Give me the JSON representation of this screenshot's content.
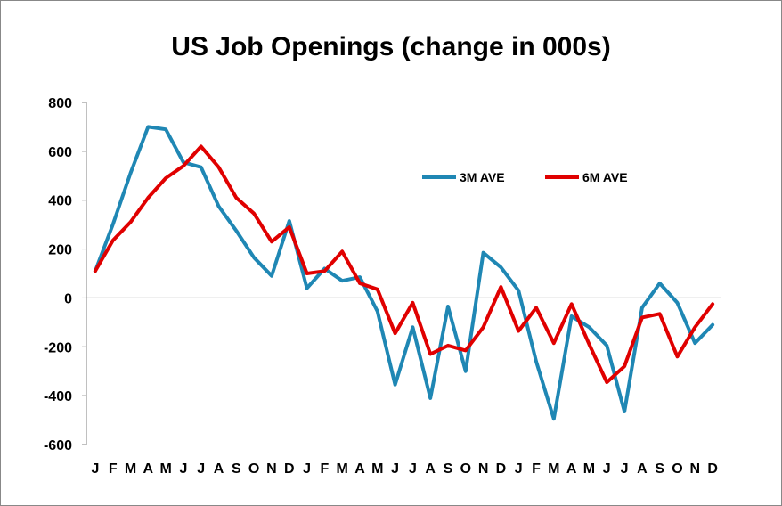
{
  "chart_data": {
    "type": "line",
    "title": "US Job Openings (change in 000s)",
    "xlabel": "",
    "ylabel": "",
    "ylim": [
      -600,
      800
    ],
    "yticks": [
      800,
      600,
      400,
      200,
      0,
      -200,
      -400,
      -600
    ],
    "ytick_labels": [
      "800",
      "600",
      "400",
      "200",
      "0",
      "-200",
      "-400",
      "-600"
    ],
    "categories": [
      "J",
      "F",
      "M",
      "A",
      "M",
      "J",
      "J",
      "A",
      "S",
      "O",
      "N",
      "D",
      "J",
      "F",
      "M",
      "A",
      "M",
      "J",
      "J",
      "A",
      "S",
      "O",
      "N",
      "D",
      "J",
      "F",
      "M",
      "A",
      "M",
      "J",
      "J",
      "A",
      "S",
      "O",
      "N",
      "D"
    ],
    "grid": false,
    "legend_position": "upper-right",
    "series": [
      {
        "name": "3M AVE",
        "color": "#1f87b4",
        "values": [
          110,
          300,
          510,
          700,
          690,
          555,
          535,
          375,
          275,
          165,
          90,
          315,
          40,
          120,
          70,
          85,
          -55,
          -355,
          -120,
          -410,
          -35,
          -300,
          185,
          125,
          30,
          -260,
          -495,
          -75,
          -120,
          -195,
          -465,
          -40,
          60,
          -20,
          -185,
          -110
        ]
      },
      {
        "name": "6M AVE",
        "color": "#e00000",
        "values": [
          110,
          235,
          310,
          410,
          490,
          540,
          620,
          535,
          410,
          345,
          230,
          290,
          100,
          110,
          190,
          60,
          35,
          -145,
          -20,
          -230,
          -195,
          -215,
          -120,
          45,
          -135,
          -40,
          -185,
          -25,
          -190,
          -345,
          -280,
          -80,
          -65,
          -240,
          -120,
          -25
        ]
      }
    ]
  }
}
